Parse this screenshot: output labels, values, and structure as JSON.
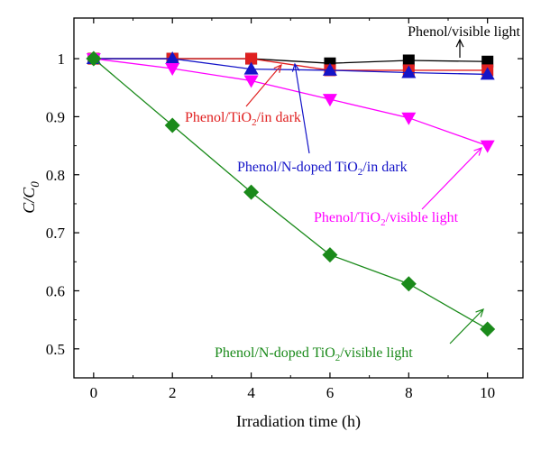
{
  "chart_data": {
    "type": "line",
    "xlabel": "Irradiation time (h)",
    "ylabel": "C/C",
    "ylabel_sub": "0",
    "xlim": [
      -0.5,
      10.9
    ],
    "ylim": [
      0.45,
      1.07
    ],
    "x_ticks": [
      0,
      2,
      4,
      6,
      8,
      10
    ],
    "x_tick_labels": [
      "0",
      "2",
      "4",
      "6",
      "8",
      "10"
    ],
    "y_ticks": [
      0.5,
      0.6,
      0.7,
      0.8,
      0.9,
      1.0
    ],
    "y_tick_labels": [
      "0.5",
      "0.6",
      "0.7",
      "0.8",
      "0.9",
      "1"
    ],
    "grid": false,
    "legend": "none",
    "x": [
      0,
      2,
      4,
      6,
      8,
      10
    ],
    "series": [
      {
        "name": "Phenol/visible light",
        "color": "#000000",
        "marker": "square",
        "values": [
          1.0,
          1.0,
          1.0,
          0.992,
          0.997,
          0.995
        ],
        "label_parts": [
          {
            "text": "Phenol/visible light"
          }
        ]
      },
      {
        "name": "Phenol/TiO2/in dark",
        "color": "#e02020",
        "marker": "square",
        "values": [
          1.0,
          1.0,
          1.0,
          0.98,
          0.98,
          0.98
        ],
        "label_parts": [
          {
            "text": "Phenol/TiO"
          },
          {
            "text": "2",
            "sub": true
          },
          {
            "text": "/in dark"
          }
        ]
      },
      {
        "name": "Phenol/N-doped TiO2/in dark",
        "color": "#1414c8",
        "marker": "triangle-up",
        "values": [
          1.0,
          1.0,
          0.982,
          0.98,
          0.976,
          0.973
        ],
        "label_parts": [
          {
            "text": "Phenol/N-doped TiO"
          },
          {
            "text": "2",
            "sub": true
          },
          {
            "text": "/in dark"
          }
        ]
      },
      {
        "name": "Phenol/TiO2/visible light",
        "color": "#ff00ff",
        "marker": "triangle-down",
        "values": [
          1.0,
          0.983,
          0.962,
          0.93,
          0.898,
          0.85
        ],
        "label_parts": [
          {
            "text": "Phenol/TiO"
          },
          {
            "text": "2",
            "sub": true
          },
          {
            "text": "/visible light"
          }
        ]
      },
      {
        "name": "Phenol/N-doped TiO2/visible light",
        "color": "#1a8a1a",
        "marker": "diamond",
        "values": [
          1.0,
          0.885,
          0.77,
          0.662,
          0.612,
          0.534
        ],
        "label_parts": [
          {
            "text": "Phenol/N-doped TiO"
          },
          {
            "text": "2",
            "sub": true
          },
          {
            "text": "/visible light"
          }
        ]
      }
    ]
  }
}
